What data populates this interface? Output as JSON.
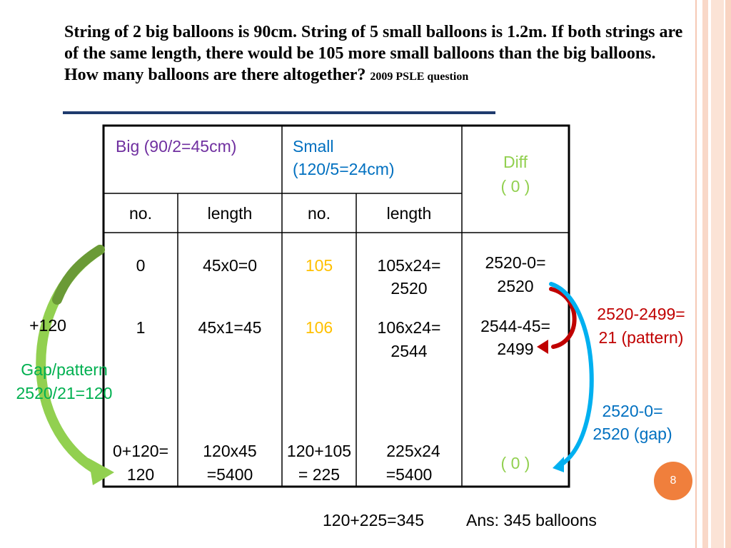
{
  "question": {
    "text": "String of 2 big balloons is 90cm. String of 5 small balloons is 1.2m. If both strings are of the same length, there would be 105 more small balloons than the big balloons. How many balloons are there altogether?",
    "source": "2009 PSLE question"
  },
  "table": {
    "big_header": "Big (90/2=45cm)",
    "small_header_line1": "Small",
    "small_header_line2": "(120/5=24cm)",
    "diff_header_line1": "Diff",
    "diff_header_line2": "( 0 )",
    "sub_no_big": "no.",
    "sub_length_big": "length",
    "sub_no_small": "no.",
    "sub_length_small": "length",
    "rows": [
      {
        "big_no": "0",
        "big_len": "45x0=0",
        "small_no": "105",
        "small_len_1": "105x24=",
        "small_len_2": "2520",
        "diff_1": "2520-0=",
        "diff_2": "2520"
      },
      {
        "big_no": "1",
        "big_len": "45x1=45",
        "small_no": "106",
        "small_len_1": "106x24=",
        "small_len_2": "2544",
        "diff_1": "2544-45=",
        "diff_2": "2499"
      },
      {
        "big_no_1": "0+120=",
        "big_no_2": "120",
        "big_len_1": "120x45",
        "big_len_2": "=5400",
        "small_no_1": "120+105",
        "small_no_2": "= 225",
        "small_len_1": "225x24",
        "small_len_2": "=5400",
        "diff": "( 0 )"
      }
    ]
  },
  "annotations": {
    "plus": "+120",
    "gap_1": "Gap/pattern",
    "gap_2": "2520/21=120",
    "pattern_1": "2520-2499=",
    "pattern_2": "21 (pattern)",
    "gapcalc_1": "2520-0=",
    "gapcalc_2": "2520 (gap)"
  },
  "footer": {
    "sum": "120+225=345",
    "answer": "Ans: 345 balloons"
  },
  "page_number": "8",
  "colors": {
    "purple": "#7030a0",
    "blue": "#0070c0",
    "green": "#92d050",
    "orange": "#ffc000",
    "red": "#c00000",
    "cyan": "#00b0f0"
  }
}
